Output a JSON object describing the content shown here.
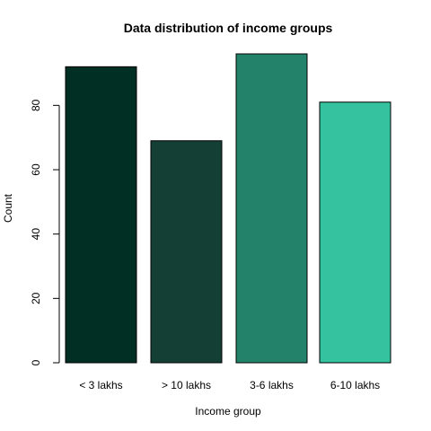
{
  "chart_data": {
    "type": "bar",
    "title": "Data distribution of income groups",
    "xlabel": "Income group",
    "ylabel": "Count",
    "categories": [
      "< 3 lakhs",
      "> 10 lakhs",
      "3-6 lakhs",
      "6-10 lakhs"
    ],
    "values": [
      92,
      69,
      96,
      81
    ],
    "colors": [
      "#022F23",
      "#133F35",
      "#23836A",
      "#35C29E"
    ],
    "ylim": [
      0,
      96
    ],
    "yticks": [
      0,
      20,
      40,
      60,
      80
    ],
    "grid": false,
    "legend": "none"
  }
}
